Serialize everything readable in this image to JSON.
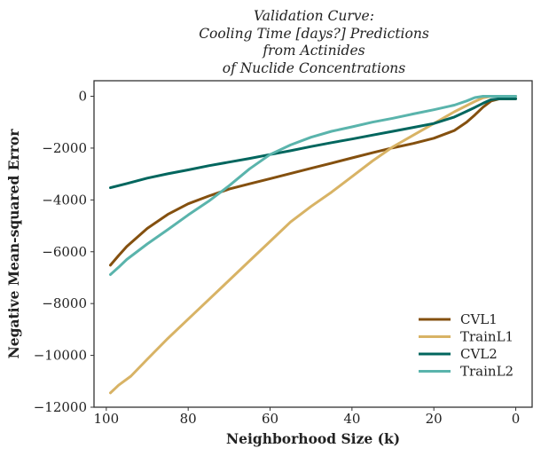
{
  "chart_data": {
    "type": "line",
    "title_lines": [
      "Validation Curve:",
      "Cooling Time [days?] Predictions",
      "from Actinides",
      "of Nuclide Concentrations"
    ],
    "xlabel": "Neighborhood Size (k)",
    "ylabel": "Negative Mean-squared Error",
    "xlim": [
      103,
      -4
    ],
    "ylim": [
      -12000,
      600
    ],
    "xticks": [
      100,
      80,
      60,
      40,
      20,
      0
    ],
    "yticks": [
      0,
      -2000,
      -4000,
      -6000,
      -8000,
      -10000,
      -12000
    ],
    "grid": false,
    "legend_position": "lower-right",
    "series": [
      {
        "name": "CVL1",
        "color": "#84500f",
        "points": [
          [
            99,
            -6520
          ],
          [
            97,
            -6150
          ],
          [
            95,
            -5800
          ],
          [
            90,
            -5100
          ],
          [
            85,
            -4560
          ],
          [
            80,
            -4150
          ],
          [
            75,
            -3850
          ],
          [
            70,
            -3580
          ],
          [
            65,
            -3380
          ],
          [
            60,
            -3180
          ],
          [
            55,
            -2980
          ],
          [
            50,
            -2780
          ],
          [
            45,
            -2580
          ],
          [
            40,
            -2380
          ],
          [
            35,
            -2180
          ],
          [
            30,
            -1990
          ],
          [
            25,
            -1820
          ],
          [
            20,
            -1620
          ],
          [
            15,
            -1320
          ],
          [
            12,
            -1000
          ],
          [
            10,
            -720
          ],
          [
            8,
            -420
          ],
          [
            6,
            -180
          ],
          [
            4,
            -100
          ],
          [
            2,
            -100
          ],
          [
            0,
            -100
          ]
        ]
      },
      {
        "name": "TrainL1",
        "color": "#d8b365",
        "points": [
          [
            99,
            -11450
          ],
          [
            97,
            -11150
          ],
          [
            94,
            -10800
          ],
          [
            90,
            -10150
          ],
          [
            85,
            -9350
          ],
          [
            80,
            -8600
          ],
          [
            75,
            -7850
          ],
          [
            70,
            -7100
          ],
          [
            65,
            -6350
          ],
          [
            60,
            -5600
          ],
          [
            55,
            -4850
          ],
          [
            50,
            -4250
          ],
          [
            45,
            -3700
          ],
          [
            40,
            -3100
          ],
          [
            35,
            -2500
          ],
          [
            30,
            -1950
          ],
          [
            25,
            -1500
          ],
          [
            20,
            -1050
          ],
          [
            15,
            -600
          ],
          [
            10,
            -200
          ],
          [
            8,
            -60
          ],
          [
            6,
            0
          ],
          [
            4,
            0
          ],
          [
            2,
            0
          ],
          [
            0,
            0
          ]
        ]
      },
      {
        "name": "CVL2",
        "color": "#01665e",
        "points": [
          [
            99,
            -3530
          ],
          [
            95,
            -3370
          ],
          [
            90,
            -3160
          ],
          [
            85,
            -2990
          ],
          [
            80,
            -2840
          ],
          [
            75,
            -2680
          ],
          [
            70,
            -2540
          ],
          [
            65,
            -2400
          ],
          [
            60,
            -2250
          ],
          [
            55,
            -2100
          ],
          [
            50,
            -1940
          ],
          [
            45,
            -1790
          ],
          [
            40,
            -1650
          ],
          [
            35,
            -1500
          ],
          [
            30,
            -1350
          ],
          [
            25,
            -1200
          ],
          [
            20,
            -1050
          ],
          [
            15,
            -800
          ],
          [
            12,
            -580
          ],
          [
            10,
            -430
          ],
          [
            8,
            -270
          ],
          [
            6,
            -130
          ],
          [
            4,
            -100
          ],
          [
            2,
            -100
          ],
          [
            0,
            -100
          ]
        ]
      },
      {
        "name": "TrainL2",
        "color": "#5ab4ac",
        "points": [
          [
            99,
            -6880
          ],
          [
            97,
            -6600
          ],
          [
            95,
            -6300
          ],
          [
            90,
            -5700
          ],
          [
            85,
            -5150
          ],
          [
            80,
            -4580
          ],
          [
            75,
            -4050
          ],
          [
            70,
            -3450
          ],
          [
            65,
            -2800
          ],
          [
            60,
            -2250
          ],
          [
            55,
            -1880
          ],
          [
            50,
            -1580
          ],
          [
            45,
            -1350
          ],
          [
            40,
            -1180
          ],
          [
            35,
            -1000
          ],
          [
            30,
            -850
          ],
          [
            25,
            -680
          ],
          [
            20,
            -520
          ],
          [
            15,
            -340
          ],
          [
            12,
            -180
          ],
          [
            10,
            -50
          ],
          [
            8,
            0
          ],
          [
            6,
            0
          ],
          [
            4,
            0
          ],
          [
            2,
            0
          ],
          [
            0,
            0
          ]
        ]
      }
    ]
  }
}
